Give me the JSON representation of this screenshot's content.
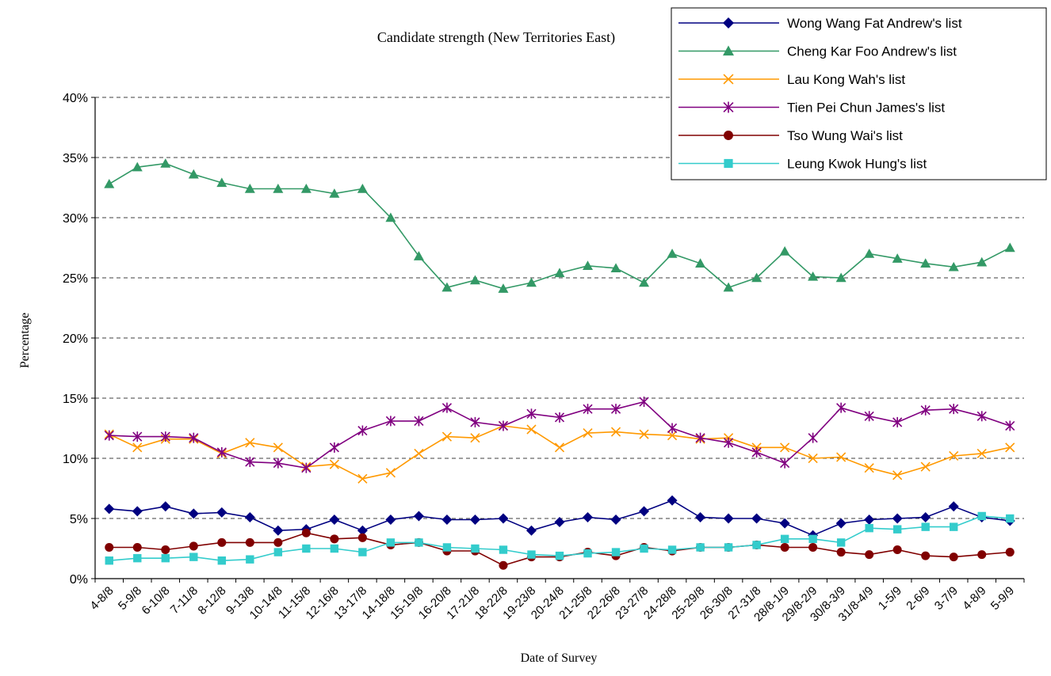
{
  "chart_data": {
    "type": "line",
    "title": "Candidate strength  (New Territories East)",
    "xlabel": "Date of Survey",
    "ylabel": "Percentage",
    "ylim": [
      0,
      40
    ],
    "yticks": [
      "0%",
      "5%",
      "10%",
      "15%",
      "20%",
      "25%",
      "30%",
      "35%",
      "40%"
    ],
    "grid": "horizontal dashed",
    "legend_position": "top-right",
    "categories": [
      "4-8/8",
      "5-9/8",
      "6-10/8",
      "7-11/8",
      "8-12/8",
      "9-13/8",
      "10-14/8",
      "11-15/8",
      "12-16/8",
      "13-17/8",
      "14-18/8",
      "15-19/8",
      "16-20/8",
      "17-21/8",
      "18-22/8",
      "19-23/8",
      "20-24/8",
      "21-25/8",
      "22-26/8",
      "23-27/8",
      "24-28/8",
      "25-29/8",
      "26-30/8",
      "27-31/8",
      "28/8-1/9",
      "29/8-2/9",
      "30/8-3/9",
      "31/8-4/9",
      "1-5/9",
      "2-6/9",
      "3-7/9",
      "4-8/9",
      "5-9/9"
    ],
    "series": [
      {
        "name": "Wong Wang Fat Andrew's list",
        "color": "#000080",
        "marker": "diamond",
        "values": [
          5.8,
          5.6,
          6.0,
          5.4,
          5.5,
          5.1,
          4.0,
          4.1,
          4.9,
          4.0,
          4.9,
          5.2,
          4.9,
          4.9,
          5.0,
          4.0,
          4.7,
          5.1,
          4.9,
          5.6,
          6.5,
          5.1,
          5.0,
          5.0,
          4.6,
          3.6,
          4.6,
          4.9,
          5.0,
          5.1,
          6.0,
          5.1,
          4.8
        ]
      },
      {
        "name": "Cheng Kar Foo Andrew's list",
        "color": "#339966",
        "marker": "triangle",
        "values": [
          32.8,
          34.2,
          34.5,
          33.6,
          32.9,
          32.4,
          32.4,
          32.4,
          32.0,
          32.4,
          30.0,
          26.8,
          24.2,
          24.8,
          24.1,
          24.6,
          25.4,
          26.0,
          25.8,
          24.6,
          27.0,
          26.2,
          24.2,
          25.0,
          27.2,
          25.1,
          25.0,
          27.0,
          26.6,
          26.2,
          25.9,
          26.3,
          27.5
        ]
      },
      {
        "name": "Lau Kong Wah's list",
        "color": "#FF9900",
        "marker": "x",
        "values": [
          12.0,
          10.9,
          11.6,
          11.6,
          10.4,
          11.3,
          10.9,
          9.3,
          9.5,
          8.3,
          8.8,
          10.4,
          11.8,
          11.7,
          12.7,
          12.4,
          10.9,
          12.1,
          12.2,
          12.0,
          11.9,
          11.6,
          11.7,
          10.9,
          10.9,
          10.0,
          10.1,
          9.2,
          8.6,
          9.3,
          10.2,
          10.4,
          10.9
        ]
      },
      {
        "name": "Tien Pei Chun James's list",
        "color": "#800080",
        "marker": "star",
        "values": [
          11.9,
          11.8,
          11.8,
          11.7,
          10.5,
          9.7,
          9.6,
          9.2,
          10.9,
          12.3,
          13.1,
          13.1,
          14.2,
          13.0,
          12.7,
          13.7,
          13.4,
          14.1,
          14.1,
          14.7,
          12.5,
          11.7,
          11.3,
          10.5,
          9.6,
          11.7,
          14.2,
          13.5,
          13.0,
          14.0,
          14.1,
          13.5,
          12.7
        ]
      },
      {
        "name": "Tso Wung Wai's list",
        "color": "#800000",
        "marker": "circle",
        "values": [
          2.6,
          2.6,
          2.4,
          2.7,
          3.0,
          3.0,
          3.0,
          3.8,
          3.3,
          3.4,
          2.8,
          3.0,
          2.3,
          2.3,
          1.1,
          1.8,
          1.8,
          2.2,
          1.9,
          2.6,
          2.3,
          2.6,
          2.6,
          2.8,
          2.6,
          2.6,
          2.2,
          2.0,
          2.4,
          1.9,
          1.8,
          2.0,
          2.2
        ]
      },
      {
        "name": "Leung Kwok Hung's list",
        "color": "#33CCCC",
        "marker": "square",
        "values": [
          1.5,
          1.7,
          1.7,
          1.8,
          1.5,
          1.6,
          2.2,
          2.5,
          2.5,
          2.2,
          3.0,
          3.0,
          2.6,
          2.5,
          2.4,
          2.0,
          1.9,
          2.1,
          2.2,
          2.5,
          2.4,
          2.6,
          2.6,
          2.8,
          3.3,
          3.3,
          3.0,
          4.2,
          4.1,
          4.3,
          4.3,
          5.2,
          5.0
        ]
      }
    ]
  }
}
